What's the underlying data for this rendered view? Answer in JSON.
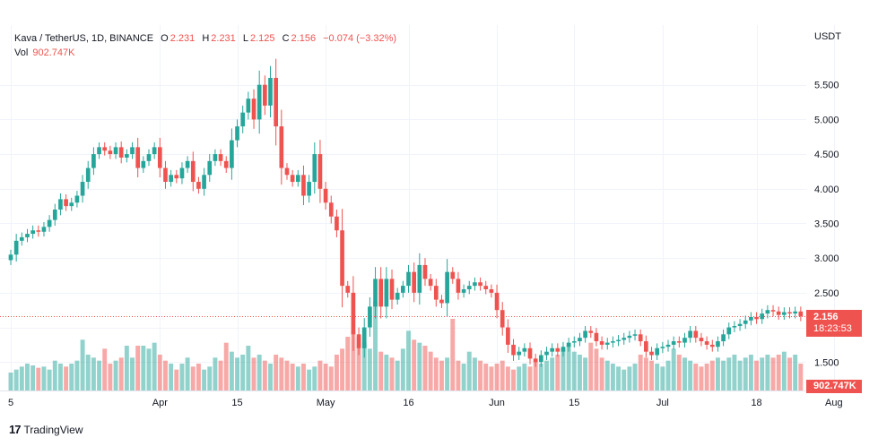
{
  "legend": {
    "symbol": "Kava / TetherUS, 1D, BINANCE",
    "open_label": "O",
    "open": "2.231",
    "high_label": "H",
    "high": "2.231",
    "low_label": "L",
    "low": "2.125",
    "close_label": "C",
    "close": "2.156",
    "change": "−0.074 (−3.32%)",
    "vol_label": "Vol",
    "vol": "902.747K"
  },
  "axis_unit": "USDT",
  "last_price": {
    "value": "2.156",
    "countdown": "18:23:53"
  },
  "last_volume": "902.747K",
  "brand": {
    "logo": "17",
    "name": "TradingView"
  },
  "colors": {
    "up": "#26a69a",
    "down": "#ef5350",
    "grid": "#f0f3fa"
  },
  "chart_data": {
    "type": "candlestick",
    "price_ticks": [
      1.5,
      2.0,
      2.5,
      3.0,
      3.5,
      4.0,
      4.5,
      5.0,
      5.5
    ],
    "price_tick_labels": [
      "1.500",
      "2.000",
      "2.500",
      "3.000",
      "3.500",
      "4.000",
      "4.500",
      "5.000",
      "5.500"
    ],
    "ylim": [
      1.09,
      6.0
    ],
    "x_ticks": [
      {
        "label": "5",
        "index": 0
      },
      {
        "label": "Apr",
        "index": 27
      },
      {
        "label": "15",
        "index": 41
      },
      {
        "label": "May",
        "index": 57
      },
      {
        "label": "16",
        "index": 72
      },
      {
        "label": "Jun",
        "index": 88
      },
      {
        "label": "15",
        "index": 102
      },
      {
        "label": "Jul",
        "index": 118
      },
      {
        "label": "18",
        "index": 135
      },
      {
        "label": "Aug",
        "index": 149
      }
    ],
    "closes": [
      3.05,
      3.25,
      3.3,
      3.35,
      3.4,
      3.38,
      3.45,
      3.55,
      3.7,
      3.85,
      3.75,
      3.8,
      3.9,
      4.1,
      4.3,
      4.5,
      4.6,
      4.55,
      4.5,
      4.6,
      4.45,
      4.5,
      4.6,
      4.3,
      4.4,
      4.5,
      4.6,
      4.3,
      4.1,
      4.2,
      4.15,
      4.3,
      4.4,
      4.1,
      4.0,
      4.2,
      4.4,
      4.5,
      4.4,
      4.3,
      4.7,
      4.9,
      5.1,
      5.3,
      5.0,
      5.5,
      5.2,
      5.6,
      4.9,
      4.3,
      4.2,
      4.1,
      4.2,
      3.9,
      4.1,
      4.5,
      4.0,
      3.8,
      3.6,
      3.4,
      2.6,
      2.5,
      1.9,
      1.7,
      2.0,
      2.3,
      2.7,
      2.3,
      2.7,
      2.4,
      2.5,
      2.6,
      2.8,
      2.5,
      2.9,
      2.7,
      2.6,
      2.4,
      2.35,
      2.8,
      2.7,
      2.5,
      2.55,
      2.6,
      2.65,
      2.6,
      2.55,
      2.5,
      2.25,
      2.0,
      1.75,
      1.6,
      1.65,
      1.7,
      1.55,
      1.5,
      1.6,
      1.65,
      1.7,
      1.65,
      1.72,
      1.78,
      1.8,
      1.85,
      1.95,
      1.92,
      1.8,
      1.75,
      1.78,
      1.8,
      1.82,
      1.85,
      1.88,
      1.9,
      1.8,
      1.65,
      1.6,
      1.7,
      1.72,
      1.75,
      1.8,
      1.78,
      1.85,
      1.95,
      1.85,
      1.8,
      1.75,
      1.72,
      1.8,
      1.9,
      2.0,
      2.02,
      2.05,
      2.1,
      2.15,
      2.12,
      2.2,
      2.25,
      2.23,
      2.18,
      2.22,
      2.2,
      2.23,
      2.16
    ],
    "volume": [
      0.3,
      0.35,
      0.4,
      0.45,
      0.42,
      0.38,
      0.4,
      0.35,
      0.5,
      0.45,
      0.4,
      0.45,
      0.5,
      0.85,
      0.6,
      0.55,
      0.5,
      0.7,
      0.45,
      0.5,
      0.55,
      0.75,
      0.55,
      0.75,
      0.75,
      0.7,
      0.8,
      0.6,
      0.5,
      0.45,
      0.35,
      0.45,
      0.55,
      0.4,
      0.45,
      0.35,
      0.4,
      0.55,
      0.5,
      0.8,
      0.65,
      0.55,
      0.6,
      0.75,
      0.55,
      0.6,
      0.5,
      0.45,
      0.6,
      0.55,
      0.5,
      0.45,
      0.4,
      0.45,
      0.35,
      0.4,
      0.5,
      0.45,
      0.4,
      0.6,
      0.7,
      0.9,
      1.0,
      0.9,
      0.8,
      0.7,
      1.5,
      0.65,
      0.6,
      0.55,
      0.5,
      0.7,
      1.0,
      0.85,
      0.8,
      0.75,
      0.65,
      0.55,
      0.5,
      0.55,
      1.2,
      0.5,
      0.45,
      0.65,
      0.55,
      0.5,
      0.45,
      0.4,
      0.45,
      0.5,
      0.4,
      0.35,
      0.4,
      0.45,
      0.4,
      0.5,
      0.45,
      0.5,
      0.55,
      0.6,
      0.7,
      0.75,
      0.65,
      0.6,
      0.55,
      0.8,
      0.7,
      0.55,
      0.5,
      0.45,
      0.4,
      0.35,
      0.4,
      0.45,
      0.6,
      0.55,
      0.5,
      0.45,
      0.4,
      0.5,
      0.7,
      0.6,
      0.55,
      0.5,
      0.45,
      0.4,
      0.45,
      0.5,
      0.55,
      0.5,
      0.55,
      0.6,
      0.5,
      0.55,
      0.6,
      0.5,
      0.55,
      0.6,
      0.55,
      0.6,
      0.65,
      0.55,
      0.6,
      0.45
    ]
  }
}
